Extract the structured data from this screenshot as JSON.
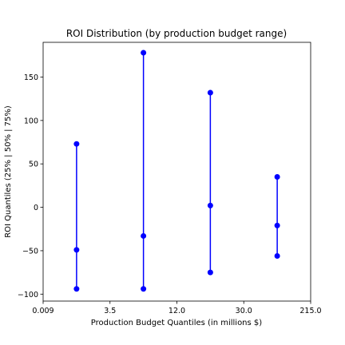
{
  "chart_data": {
    "type": "scatter",
    "title": "ROI Distribution (by production budget range)",
    "xlabel": "Production Budget Quantiles (in millions $)",
    "ylabel": "ROI Quantiles (25% | 50% | 75%)",
    "x_tick_labels": [
      "0.009",
      "3.5",
      "12.0",
      "30.0",
      "215.0"
    ],
    "y_ticks": [
      150,
      100,
      50,
      0,
      -50,
      -100
    ],
    "ylim": [
      -108,
      190
    ],
    "grid": false,
    "color": "#0000ff",
    "groups": [
      {
        "budget_range": "0.009 – 3.5",
        "q25": -94,
        "q50": -49,
        "q75": 73
      },
      {
        "budget_range": "3.5 – 12.0",
        "q25": -94,
        "q50": -33,
        "q75": 178
      },
      {
        "budget_range": "12.0 – 30.0",
        "q25": -75,
        "q50": 2,
        "q75": 132
      },
      {
        "budget_range": "30.0 – 215.0",
        "q25": -56,
        "q50": -21,
        "q75": 35
      }
    ]
  }
}
